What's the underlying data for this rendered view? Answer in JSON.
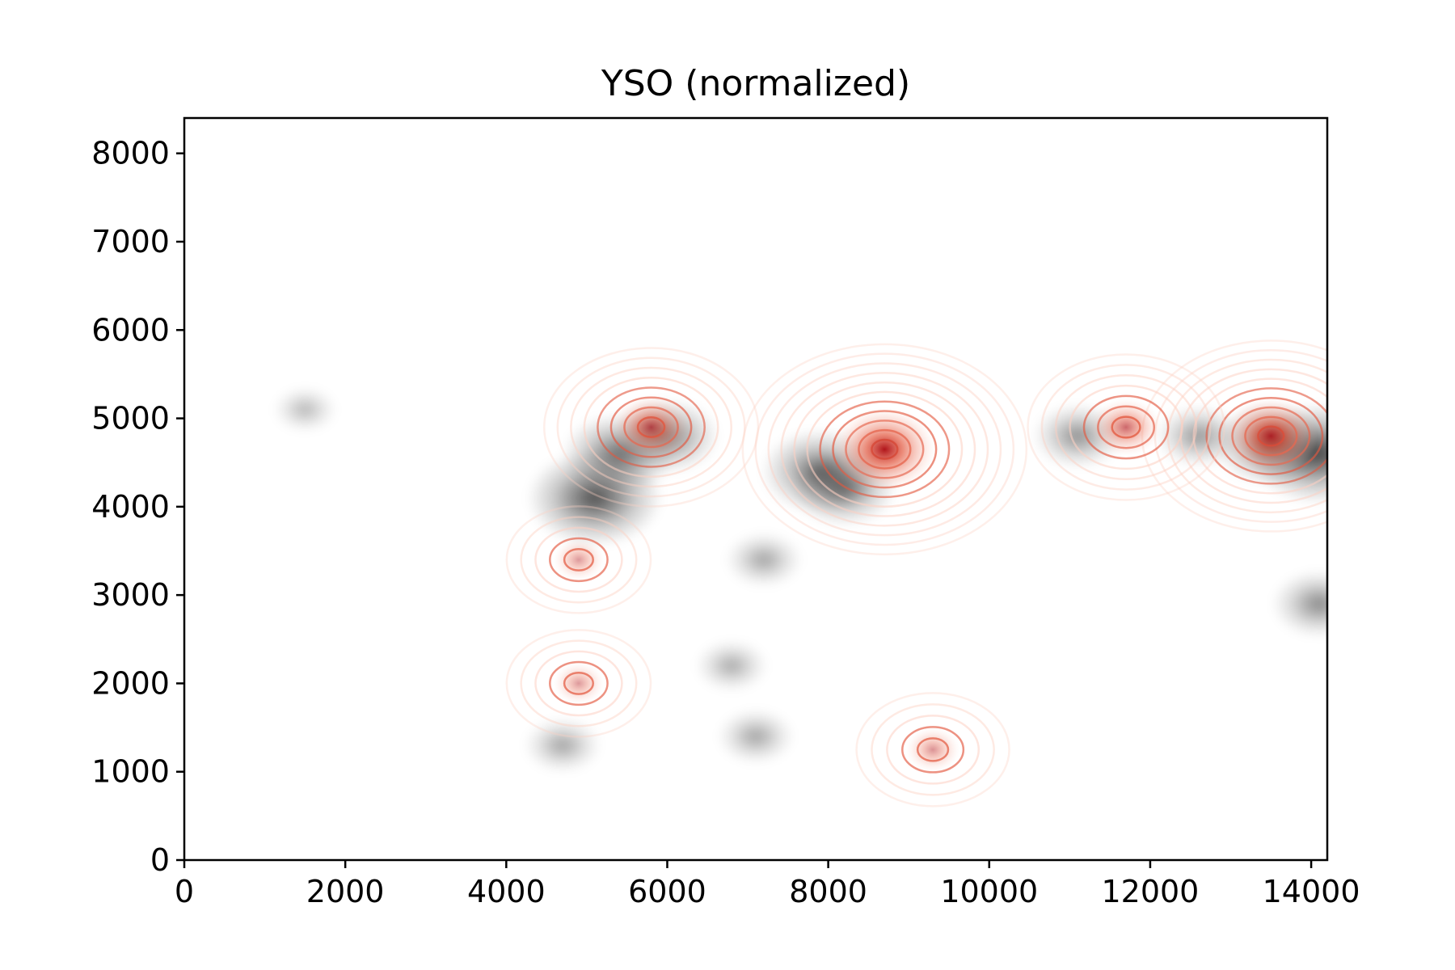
{
  "chart_data": {
    "type": "heatmap",
    "title": "YSO (normalized)",
    "xlabel": "",
    "ylabel": "",
    "xlim": [
      0,
      14200
    ],
    "ylim": [
      0,
      8400
    ],
    "grid": false,
    "legend": "none",
    "x_ticks": [
      0,
      2000,
      4000,
      6000,
      8000,
      10000,
      12000,
      14000
    ],
    "y_ticks": [
      0,
      1000,
      2000,
      3000,
      4000,
      5000,
      6000,
      7000,
      8000
    ],
    "x_tick_labels": [
      "0",
      "2000",
      "4000",
      "6000",
      "8000",
      "10000",
      "12000",
      "14000"
    ],
    "y_tick_labels": [
      "0",
      "1000",
      "2000",
      "3000",
      "4000",
      "5000",
      "6000",
      "7000",
      "8000"
    ],
    "colors": {
      "background_map": "#808080",
      "contour_low": "#fdd0c2",
      "contour_high": "#e3583f",
      "peak": "#b0151b"
    },
    "grayscale_features": [
      {
        "x": 5100,
        "y": 4100,
        "value": 0.95
      },
      {
        "x": 5400,
        "y": 4600,
        "value": 0.7
      },
      {
        "x": 6000,
        "y": 4800,
        "value": 0.6
      },
      {
        "x": 7900,
        "y": 4400,
        "value": 0.75
      },
      {
        "x": 8200,
        "y": 4200,
        "value": 0.6
      },
      {
        "x": 7200,
        "y": 3400,
        "value": 0.3
      },
      {
        "x": 6800,
        "y": 2200,
        "value": 0.25
      },
      {
        "x": 7100,
        "y": 1400,
        "value": 0.3
      },
      {
        "x": 4700,
        "y": 1300,
        "value": 0.3
      },
      {
        "x": 11100,
        "y": 4800,
        "value": 0.45
      },
      {
        "x": 12600,
        "y": 4800,
        "value": 0.4
      },
      {
        "x": 13500,
        "y": 4700,
        "value": 0.7
      },
      {
        "x": 14100,
        "y": 4600,
        "value": 1.0
      },
      {
        "x": 14100,
        "y": 2900,
        "value": 0.5
      },
      {
        "x": 1500,
        "y": 5100,
        "value": 0.15
      }
    ],
    "contour_peaks": [
      {
        "x": 8700,
        "y": 4650,
        "value": 1.0
      },
      {
        "x": 13500,
        "y": 4800,
        "value": 0.85
      },
      {
        "x": 5800,
        "y": 4900,
        "value": 0.6
      },
      {
        "x": 11700,
        "y": 4900,
        "value": 0.5
      },
      {
        "x": 9300,
        "y": 1250,
        "value": 0.25
      },
      {
        "x": 4900,
        "y": 2000,
        "value": 0.2
      },
      {
        "x": 4900,
        "y": 3400,
        "value": 0.2
      }
    ]
  }
}
